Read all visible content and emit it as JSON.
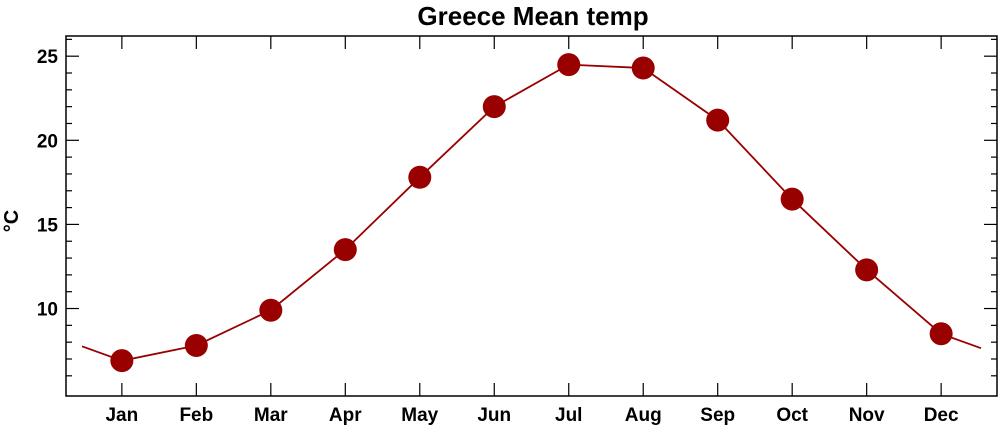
{
  "colors": {
    "series": "#990000",
    "axis": "#000000",
    "background": "#ffffff"
  },
  "chart_data": {
    "type": "line",
    "title": "Greece Mean temp",
    "xlabel": "",
    "ylabel": "°C",
    "categories": [
      "Jan",
      "Feb",
      "Mar",
      "Apr",
      "May",
      "Jun",
      "Jul",
      "Aug",
      "Sep",
      "Oct",
      "Nov",
      "Dec"
    ],
    "series": [
      {
        "values": [
          6.9,
          7.8,
          9.9,
          13.5,
          17.8,
          22.0,
          24.5,
          24.3,
          21.2,
          16.5,
          12.3,
          8.5
        ],
        "color": "#990000",
        "marker": "circle",
        "wrap_line_at_edges": true
      }
    ],
    "ylim": [
      4.8,
      26.2
    ],
    "yticks": [
      10,
      15,
      20,
      25
    ],
    "grid": false,
    "legend": "none"
  }
}
